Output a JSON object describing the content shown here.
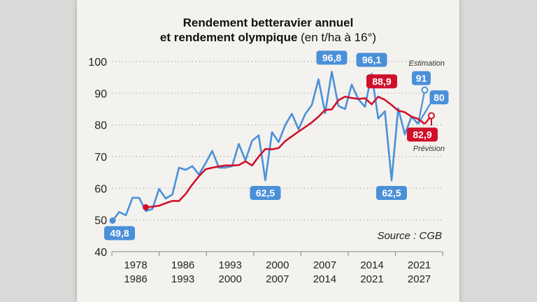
{
  "title": {
    "line1": "Rendement betteravier annuel",
    "line2_bold": "et rendement olympique",
    "line2_rest": " (en t/ha à 16°)"
  },
  "colors": {
    "annual": "#4a90d9",
    "olympic": "#d0102a",
    "background": "#f3f2ee"
  },
  "chart_data": {
    "type": "line",
    "ylim": [
      40,
      100
    ],
    "yticks": [
      40,
      50,
      60,
      70,
      80,
      90,
      100
    ],
    "grid": "dotted horizontal",
    "xtick_labels": [
      [
        "1978",
        "1986"
      ],
      [
        "1986",
        "1993"
      ],
      [
        "1993",
        "2000"
      ],
      [
        "2000",
        "2007"
      ],
      [
        "2007",
        "2014"
      ],
      [
        "2014",
        "2021"
      ],
      [
        "2021",
        "2027"
      ]
    ],
    "series": [
      {
        "key": "annual",
        "color": "#4a90d9",
        "x": [
          1978,
          1979,
          1980,
          1981,
          1982,
          1983,
          1984,
          1985,
          1986,
          1987,
          1988,
          1989,
          1990,
          1991,
          1992,
          1993,
          1994,
          1995,
          1996,
          1997,
          1998,
          1999,
          2000,
          2001,
          2002,
          2003,
          2004,
          2005,
          2006,
          2007,
          2008,
          2009,
          2010,
          2011,
          2012,
          2013,
          2014,
          2015,
          2016,
          2017,
          2018,
          2019,
          2020,
          2021,
          2022,
          2023,
          2024
        ],
        "values": [
          49.8,
          52.5,
          51.5,
          57,
          57,
          52.8,
          53.5,
          59.8,
          56.8,
          58,
          66.5,
          65.8,
          67,
          64.3,
          67.9,
          71.8,
          66.5,
          66.5,
          67,
          74,
          68.8,
          75,
          76.7,
          62.5,
          77.7,
          74.6,
          80,
          83.5,
          78.6,
          83.4,
          86.3,
          94.4,
          83.7,
          96.8,
          86,
          85,
          92.7,
          88.1,
          85.7,
          96.1,
          82,
          84.3,
          62.5,
          85.2,
          77,
          82.6,
          80.3
        ],
        "estimate": {
          "x": 2025,
          "value": 91,
          "label": "Estimation"
        },
        "extra_label": "80"
      },
      {
        "key": "olympic",
        "color": "#d0102a",
        "x": [
          1983,
          1984,
          1985,
          1986,
          1987,
          1988,
          1989,
          1990,
          1991,
          1992,
          1993,
          1994,
          1995,
          1996,
          1997,
          1998,
          1999,
          2000,
          2001,
          2002,
          2003,
          2004,
          2005,
          2006,
          2007,
          2008,
          2009,
          2010,
          2011,
          2012,
          2013,
          2014,
          2015,
          2016,
          2017,
          2018,
          2019,
          2020,
          2021,
          2022,
          2023,
          2024,
          2025
        ],
        "values": [
          54,
          54.2,
          54.5,
          55.3,
          56,
          56,
          58.2,
          61.2,
          63.8,
          66,
          66.5,
          66.9,
          67.2,
          67.2,
          67.3,
          68.5,
          67.2,
          70,
          72.4,
          72.3,
          72.7,
          74.9,
          76.4,
          77.9,
          79.3,
          80.8,
          82.6,
          84.7,
          84.9,
          87.8,
          88.9,
          88.5,
          88.2,
          88.4,
          86.5,
          88.9,
          87.9,
          86.3,
          84.5,
          84,
          82.6,
          81.9,
          80.3
        ],
        "forecast": {
          "x": 2026,
          "value": 82.9,
          "label": "Prévision"
        }
      }
    ],
    "data_labels": [
      {
        "series": "annual",
        "x": 1978,
        "text": "49,8"
      },
      {
        "series": "annual",
        "x": 2001,
        "text": "62,5"
      },
      {
        "series": "annual",
        "x": 2011,
        "text": "96,8"
      },
      {
        "series": "annual",
        "x": 2017,
        "text": "96,1"
      },
      {
        "series": "annual",
        "x": 2020,
        "text": "62,5"
      },
      {
        "series": "annual",
        "x": 2025,
        "text": "91"
      },
      {
        "series": "olympic",
        "x": 2018,
        "text": "88,9"
      },
      {
        "series": "olympic",
        "x": 2026,
        "text": "82,9"
      }
    ],
    "source": "Source : CGB"
  }
}
